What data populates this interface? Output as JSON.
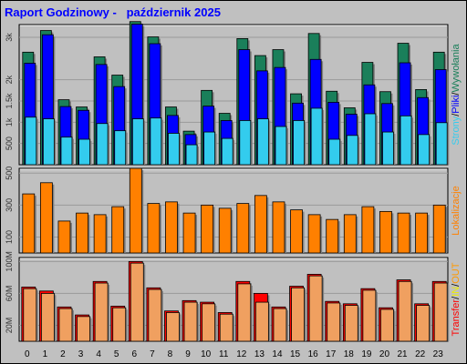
{
  "title": "Raport Godzinowy -   październik 2025",
  "colors": {
    "background": "#c0c0c0",
    "panel": "#c0c0c0",
    "hits": "#1a7f5a",
    "files": "#0000ff",
    "pages": "#33ccee",
    "visits": "#ff8000",
    "kbytes": "#ff0000",
    "in": "#eeee00",
    "out": "#ff9900",
    "bar_fill_orange": "#f0a060"
  },
  "chart_data": [
    {
      "type": "bar",
      "title": "Raport Godzinowy -   październik 2025",
      "legend_label_parts": [
        "Strony",
        "/",
        "Pliki",
        "/",
        "Wywołania"
      ],
      "categories": [
        "0",
        "1",
        "2",
        "3",
        "4",
        "5",
        "6",
        "7",
        "8",
        "9",
        "10",
        "11",
        "12",
        "13",
        "14",
        "15",
        "16",
        "17",
        "18",
        "19",
        "20",
        "21",
        "22",
        "23"
      ],
      "ylim": [
        0,
        3300
      ],
      "yticks": [
        "500",
        "1k",
        "1.5k",
        "2k",
        "3k"
      ],
      "ytick_values": [
        500,
        1000,
        1500,
        2000,
        3000
      ],
      "series": [
        {
          "name": "Wywołania",
          "values": [
            2650,
            3160,
            1530,
            1360,
            2540,
            2110,
            3370,
            3010,
            1360,
            790,
            1750,
            1210,
            2970,
            2570,
            2710,
            1670,
            3090,
            1730,
            1340,
            2410,
            1720,
            2860,
            1770,
            2650
          ]
        },
        {
          "name": "Pliki",
          "values": [
            2390,
            3060,
            1370,
            1280,
            2360,
            1840,
            3310,
            2850,
            1160,
            710,
            1380,
            1040,
            2710,
            2210,
            2290,
            1450,
            2480,
            1470,
            1190,
            1880,
            1440,
            2400,
            1580,
            2240
          ]
        },
        {
          "name": "Strony",
          "values": [
            1120,
            1080,
            650,
            600,
            970,
            800,
            1080,
            1100,
            740,
            470,
            770,
            620,
            1040,
            1080,
            900,
            1040,
            1330,
            600,
            690,
            1200,
            770,
            1150,
            710,
            990
          ]
        }
      ]
    },
    {
      "type": "bar",
      "legend_label_parts": [
        "Lokalizacje"
      ],
      "categories": [
        "0",
        "1",
        "2",
        "3",
        "4",
        "5",
        "6",
        "7",
        "8",
        "9",
        "10",
        "11",
        "12",
        "13",
        "14",
        "15",
        "16",
        "17",
        "18",
        "19",
        "20",
        "21",
        "22",
        "23"
      ],
      "ylim": [
        0,
        530
      ],
      "yticks": [
        "100",
        "300",
        "500"
      ],
      "ytick_values": [
        100,
        300,
        500
      ],
      "series": [
        {
          "name": "Lokalizacje",
          "values": [
            370,
            440,
            200,
            250,
            240,
            290,
            530,
            310,
            320,
            250,
            300,
            280,
            310,
            360,
            320,
            270,
            240,
            210,
            240,
            290,
            260,
            250,
            250,
            300
          ]
        }
      ]
    },
    {
      "type": "bar",
      "legend_label_parts": [
        "Transfer",
        "/",
        "IN",
        "/",
        "OUT"
      ],
      "categories": [
        "0",
        "1",
        "2",
        "3",
        "4",
        "5",
        "6",
        "7",
        "8",
        "9",
        "10",
        "11",
        "12",
        "13",
        "14",
        "15",
        "16",
        "17",
        "18",
        "19",
        "20",
        "21",
        "22",
        "23"
      ],
      "ylim": [
        0,
        105
      ],
      "yticks": [
        "20M",
        "60M",
        "100M"
      ],
      "ytick_values": [
        20,
        60,
        100
      ],
      "series": [
        {
          "name": "Transfer",
          "values": [
            68,
            63,
            43,
            33,
            75,
            44,
            100,
            67,
            38,
            51,
            49,
            36,
            75,
            60,
            43,
            69,
            84,
            50,
            47,
            66,
            42,
            77,
            47,
            75
          ]
        },
        {
          "name": "OUT",
          "values": [
            66,
            60,
            41,
            31,
            73,
            42,
            98,
            65,
            36,
            49,
            47,
            34,
            72,
            49,
            41,
            67,
            82,
            48,
            45,
            64,
            40,
            75,
            45,
            73
          ]
        }
      ]
    }
  ]
}
